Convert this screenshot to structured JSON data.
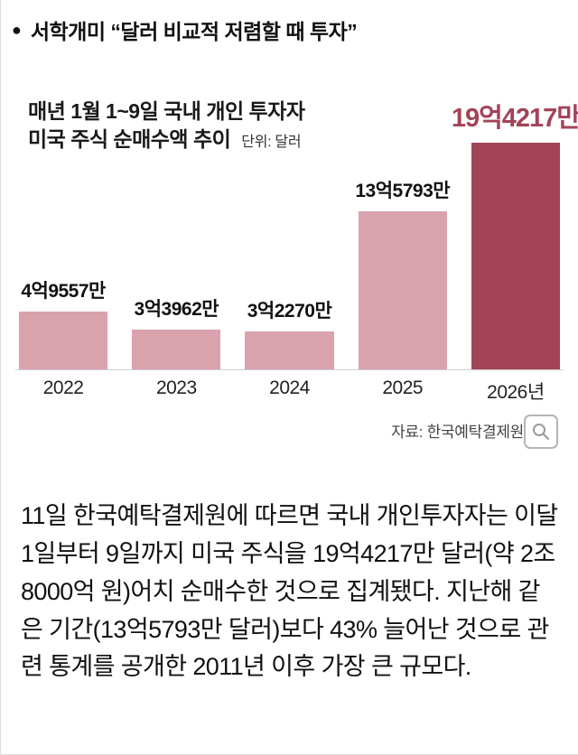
{
  "headline": {
    "bullet": "●",
    "text": "서학개미 “달러 비교적 저렴할 때 투자”"
  },
  "chart": {
    "title_line1": "매년 1월 1~9일 국내 개인 투자자",
    "title_line2": "미국 주식 순매수액 추이",
    "unit": "단위: 달러",
    "source": "자료: 한국예탁결제원"
  },
  "chart_data": {
    "type": "bar",
    "title": "매년 1월 1~9일 국내 개인 투자자 미국 주식 순매수액 추이",
    "unit_label": "단위: 달러",
    "categories": [
      "2022",
      "2023",
      "2024",
      "2025",
      "2026년"
    ],
    "values": [
      49557,
      33962,
      32270,
      135793,
      194217
    ],
    "value_unit": "만 달러",
    "value_labels": [
      "4억9557만",
      "3억3962만",
      "3억2270만",
      "13억5793만",
      "19억4217만"
    ],
    "highlight_index": 4,
    "ylim": [
      0,
      194217
    ],
    "grid": false,
    "legend": false,
    "source": "자료: 한국예탁결제원"
  },
  "colors": {
    "bar_light": "#d9a2ad",
    "bar_dark": "#a34358",
    "highlight_text": "#a34358"
  },
  "body": {
    "paragraph": "11일 한국예탁결제원에 따르면 국내 개인투자자는 이달 1일부터 9일까지 미국 주식을 19억4217만 달러(약 2조8000억 원)어치 순매수한 것으로 집계됐다. 지난해 같은 기간(13억5793만 달러)보다 43% 늘어난 것으로 관련 통계를 공개한 2011년 이후 가장 큰 규모다."
  }
}
